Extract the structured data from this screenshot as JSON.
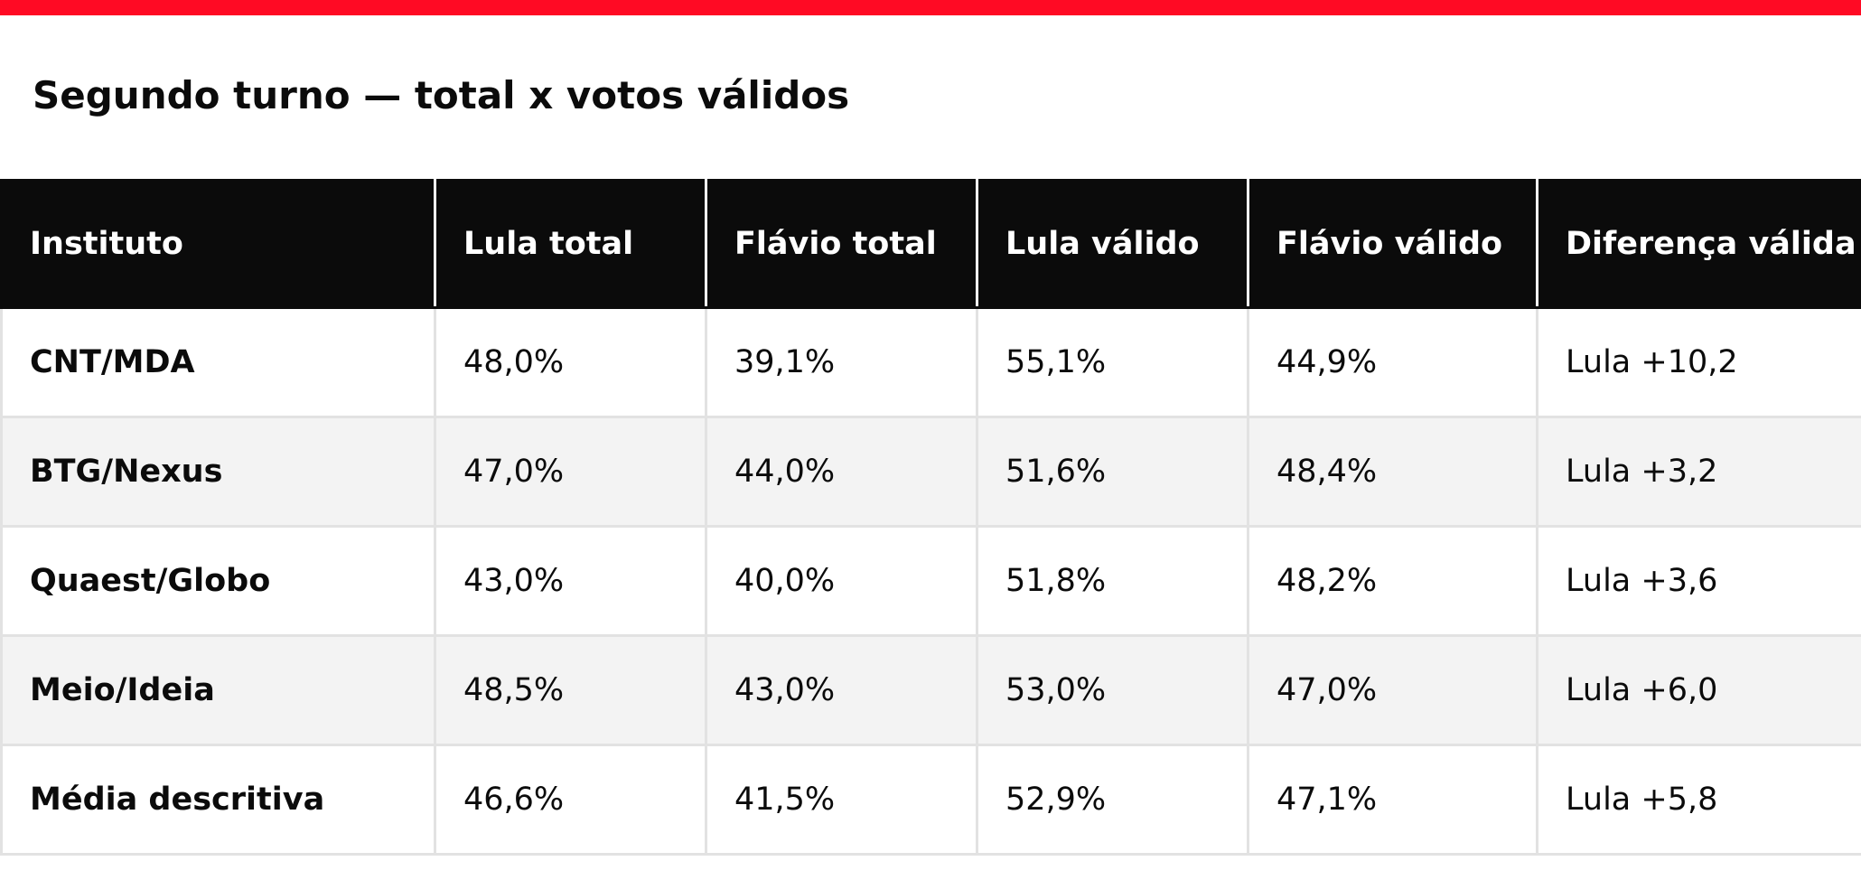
{
  "colors": {
    "accent": "#ff0a24",
    "header_bg": "#0b0b0b",
    "header_text": "#ffffff",
    "row_alt_bg": "#f3f3f3",
    "row_bg": "#ffffff",
    "border": "#e2e2e2",
    "text": "#0b0b0b"
  },
  "title": "Segundo turno — total x votos válidos",
  "table": {
    "headers": [
      "Instituto",
      "Lula total",
      "Flávio total",
      "Lula válido",
      "Flávio válido",
      "Diferença válida"
    ],
    "rows": [
      [
        "CNT/MDA",
        "48,0%",
        "39,1%",
        "55,1%",
        "44,9%",
        "Lula +10,2"
      ],
      [
        "BTG/Nexus",
        "47,0%",
        "44,0%",
        "51,6%",
        "48,4%",
        "Lula +3,2"
      ],
      [
        "Quaest/Globo",
        "43,0%",
        "40,0%",
        "51,8%",
        "48,2%",
        "Lula +3,6"
      ],
      [
        "Meio/Ideia",
        "48,5%",
        "43,0%",
        "53,0%",
        "47,0%",
        "Lula +6,0"
      ],
      [
        "Média descritiva",
        "46,6%",
        "41,5%",
        "52,9%",
        "47,1%",
        "Lula +5,8"
      ]
    ]
  }
}
